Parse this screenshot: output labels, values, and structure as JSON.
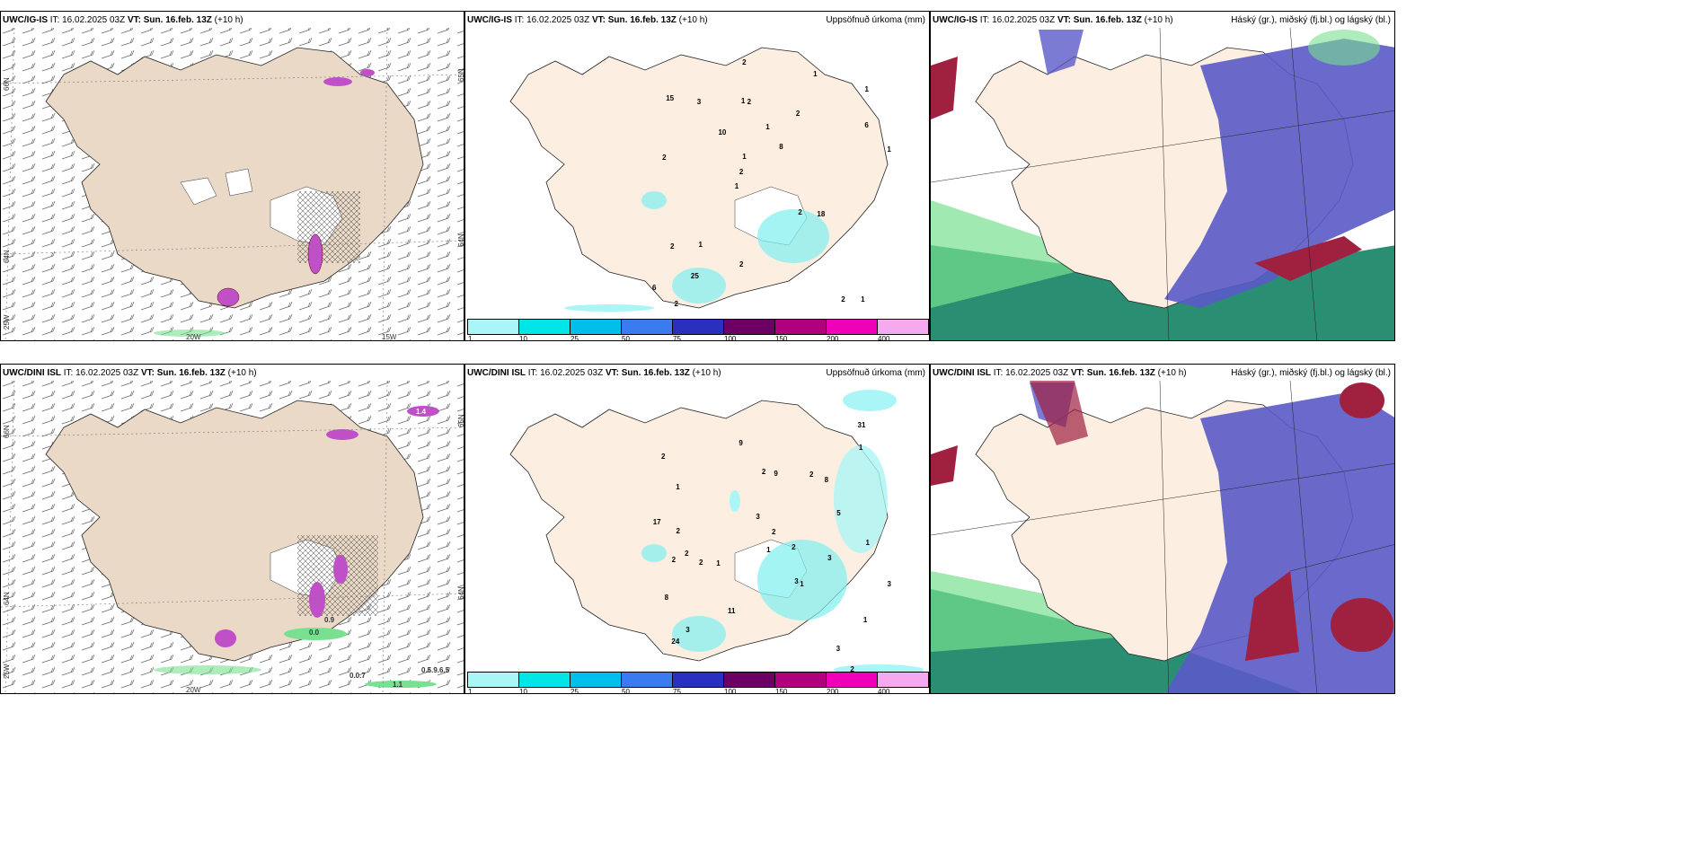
{
  "panels": [
    {
      "model": "UWC/IG-IS",
      "it_label": "IT:",
      "it": "16.02.2025 03Z",
      "vt_label": "VT:",
      "vt": "Sun. 16.feb. 13Z",
      "lead": "(+10 h)",
      "subtitle": "",
      "lat_left": [
        "66N",
        "64N",
        "25W"
      ],
      "lon_bottom": [
        "20W",
        "15W"
      ],
      "lat_right": [
        "65N",
        "64N"
      ]
    },
    {
      "model": "UWC/IG-IS",
      "it_label": "IT:",
      "it": "16.02.2025 03Z",
      "vt_label": "VT:",
      "vt": "Sun. 16.feb. 13Z",
      "lead": "(+10 h)",
      "subtitle": "Uppsöfnuð úrkoma (mm)",
      "labels": [
        "1",
        "2",
        "1",
        "1",
        "2",
        "2",
        "1",
        "1",
        "2",
        "10",
        "6",
        "25",
        "2",
        "8",
        "18",
        "15",
        "2",
        "1",
        "2",
        "6",
        "2",
        "2",
        "1",
        "3",
        "1",
        "1",
        "2"
      ]
    },
    {
      "model": "UWC/IG-IS",
      "it_label": "IT:",
      "it": "16.02.2025 03Z",
      "vt_label": "VT:",
      "vt": "Sun. 16.feb. 13Z",
      "lead": "(+10 h)",
      "subtitle": "Háský (gr.), miðský (fj.bl.) og lágský (bl.)"
    },
    {
      "model": "UWC/DINI ISL",
      "it_label": "IT:",
      "it": "16.02.2025 03Z",
      "vt_label": "VT:",
      "vt": "Sun. 16.feb. 13Z",
      "lead": "(+10 h)",
      "subtitle": "",
      "lat_left": [
        "66N",
        "64N",
        "25W"
      ],
      "lon_bottom": [
        "20W"
      ],
      "lat_right": [
        "65N",
        "64N"
      ],
      "values": [
        "1.4",
        "0.0",
        "0.9",
        "0.0.7",
        "0.5.9.6.5",
        "1.1"
      ]
    },
    {
      "model": "UWC/DINI ISL",
      "it_label": "IT:",
      "it": "16.02.2025 03Z",
      "vt_label": "VT:",
      "vt": "Sun. 16.feb. 13Z",
      "lead": "(+10 h)",
      "subtitle": "Uppsöfnuð úrkoma (mm)",
      "labels": [
        "2",
        "2",
        "3",
        "2",
        "1",
        "1",
        "3",
        "1",
        "8",
        "2",
        "2",
        "3",
        "11",
        "9",
        "2",
        "8",
        "3",
        "2",
        "17",
        "24",
        "31",
        "9",
        "5",
        "3",
        "1",
        "2",
        "2",
        "1",
        "3",
        "1",
        "1",
        "2"
      ]
    },
    {
      "model": "UWC/DINI ISL",
      "it_label": "IT:",
      "it": "16.02.2025 03Z",
      "vt_label": "VT:",
      "vt": "Sun. 16.feb. 13Z",
      "lead": "(+10 h)",
      "subtitle": "Háský (gr.), miðský (fj.bl.) og lágský (bl.)"
    }
  ],
  "legend": {
    "ticks": [
      "1",
      "10",
      "25",
      "50",
      "75",
      "100",
      "150",
      "200",
      "400"
    ],
    "colors": [
      "#aaf5f5",
      "#00e6e6",
      "#00bfea",
      "#3a7cf0",
      "#2b2fbf",
      "#6d0064",
      "#b0007e",
      "#f000b8",
      "#f5aaf0"
    ]
  },
  "colors": {
    "land": "#fcefe2",
    "land_dry": "#e9d9c6",
    "precip": "#7ff0f0",
    "snow_magenta": "#c050c8",
    "green": "#78e090",
    "high_cloud": "#2a8f72",
    "mid_cloud": "#5a5ac8",
    "low_cloud": "#a02040"
  }
}
